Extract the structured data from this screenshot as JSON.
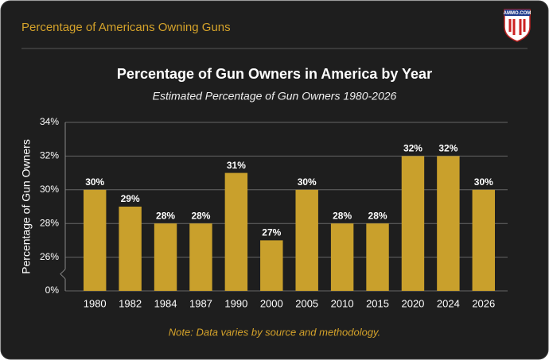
{
  "header": {
    "title": "Percentage of Americans Owning Guns",
    "logo": "AMMO.COM"
  },
  "chart_data": {
    "type": "bar",
    "title": "Percentage of Gun Owners in America by Year",
    "subtitle": "Estimated Percentage of Gun Owners 1980-2026",
    "y_label": "Percentage of Gun Owners",
    "note": "Note: Data varies by source and methodology.",
    "categories": [
      "1980",
      "1982",
      "1984",
      "1987",
      "1990",
      "2000",
      "2005",
      "2010",
      "2015",
      "2020",
      "2024",
      "2026"
    ],
    "values": [
      30,
      29,
      28,
      28,
      31,
      27,
      30,
      28,
      28,
      32,
      32,
      30
    ],
    "value_labels": [
      "30%",
      "29%",
      "28%",
      "28%",
      "31%",
      "27%",
      "30%",
      "28%",
      "28%",
      "32%",
      "32%",
      "30%"
    ],
    "color": "#c9a02c",
    "ylim": [
      0,
      34
    ],
    "yticks": [
      {
        "value": 0,
        "label": "0%"
      },
      {
        "value": 26,
        "label": "26%"
      },
      {
        "value": 28,
        "label": "28%"
      },
      {
        "value": 30,
        "label": "30%"
      },
      {
        "value": 32,
        "label": "32%"
      },
      {
        "value": 34,
        "label": "34%"
      }
    ],
    "broken_axis": true,
    "grid": true
  }
}
